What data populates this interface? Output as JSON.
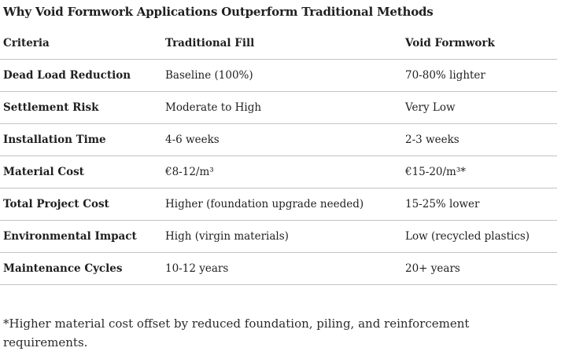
{
  "title": "Why Void Formwork Applications Outperform Traditional Methods",
  "table": {
    "headers": [
      "Criteria",
      "Traditional Fill",
      "Void Formwork"
    ],
    "rows": [
      [
        "Dead Load Reduction",
        "Baseline (100%)",
        "70-80% lighter"
      ],
      [
        "Settlement Risk",
        "Moderate to High",
        "Very Low"
      ],
      [
        "Installation Time",
        "4-6 weeks",
        "2-3 weeks"
      ],
      [
        "Material Cost",
        "€8-12/m³",
        "€15-20/m³*"
      ],
      [
        "Total Project Cost",
        "Higher (foundation upgrade needed)",
        "15-25% lower"
      ],
      [
        "Environmental Impact",
        "High (virgin materials)",
        "Low (recycled plastics)"
      ],
      [
        "Maintenance Cycles",
        "10-12 years",
        "20+ years"
      ]
    ]
  },
  "footnote": "*Higher material cost offset by reduced foundation, piling, and reinforcement requirements."
}
